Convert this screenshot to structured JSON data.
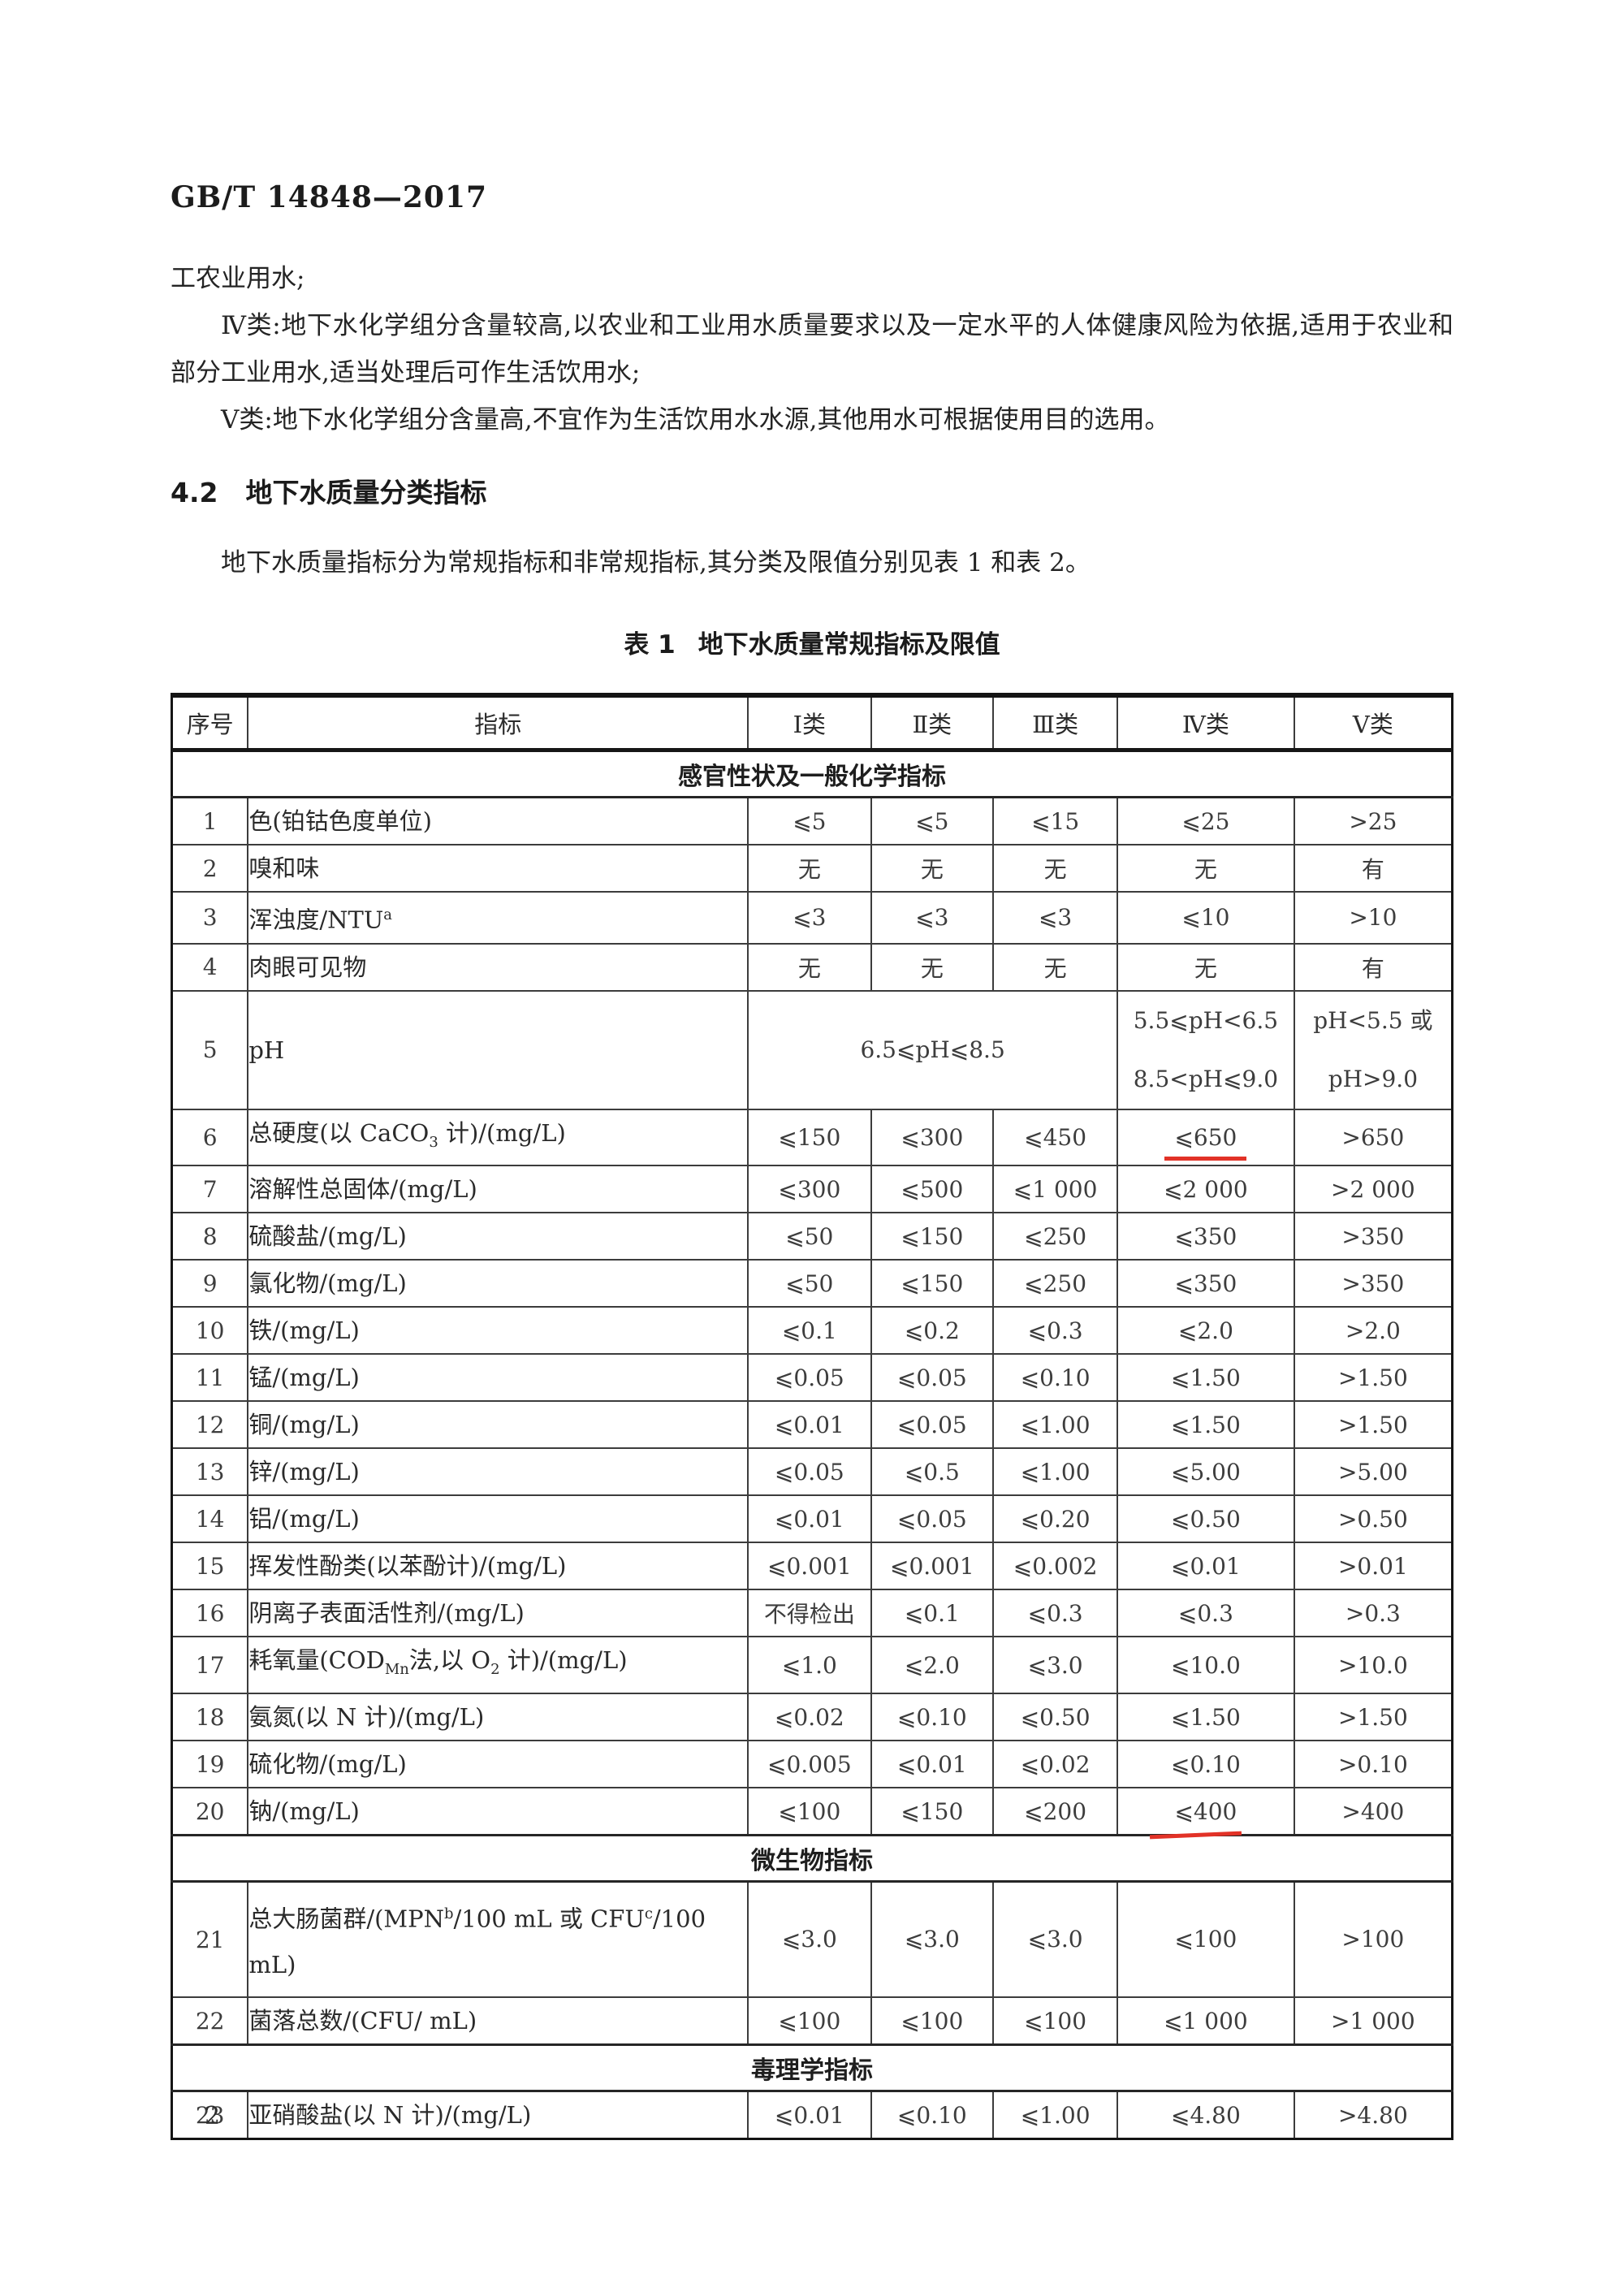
{
  "page": {
    "doc_code": "GB/T 14848—2017",
    "page_number": "2"
  },
  "paragraphs": {
    "p0": "工农业用水;",
    "p1": "Ⅳ类:地下水化学组分含量较高,以农业和工业用水质量要求以及一定水平的人体健康风险为依据,适用于农业和部分工业用水,适当处理后可作生活饮用水;",
    "p2": "Ⅴ类:地下水化学组分含量高,不宜作为生活饮用水水源,其他用水可根据使用目的选用。"
  },
  "section": {
    "number": "4.2",
    "title": "地下水质量分类指标",
    "body": "地下水质量指标分为常规指标和非常规指标,其分类及限值分别见表 1 和表 2。"
  },
  "table": {
    "caption_label": "表 1",
    "caption_title": "地下水质量常规指标及限值",
    "mark_red": "#e23227",
    "headers": [
      "序号",
      "指标",
      "Ⅰ类",
      "Ⅱ类",
      "Ⅲ类",
      "Ⅳ类",
      "Ⅴ类"
    ],
    "rows": [
      {
        "type": "section",
        "label": "感官性状及一般化学指标"
      },
      {
        "type": "row",
        "no": "1",
        "label": "色(铂钴色度单位)",
        "cells": [
          {
            "t": "⩽5"
          },
          {
            "t": "⩽5"
          },
          {
            "t": "⩽15"
          },
          {
            "t": "⩽25"
          },
          {
            "t": ">25"
          }
        ]
      },
      {
        "type": "row",
        "no": "2",
        "label": "嗅和味",
        "cells": [
          {
            "t": "无"
          },
          {
            "t": "无"
          },
          {
            "t": "无"
          },
          {
            "t": "无"
          },
          {
            "t": "有"
          }
        ]
      },
      {
        "type": "row",
        "no": "3",
        "label": "浑浊度/NTU<sup>a</sup>",
        "cells": [
          {
            "t": "⩽3"
          },
          {
            "t": "⩽3"
          },
          {
            "t": "⩽3"
          },
          {
            "t": "⩽10"
          },
          {
            "t": ">10"
          }
        ]
      },
      {
        "type": "row",
        "no": "4",
        "label": "肉眼可见物",
        "cells": [
          {
            "t": "无"
          },
          {
            "t": "无"
          },
          {
            "t": "无"
          },
          {
            "t": "无"
          },
          {
            "t": "有"
          }
        ]
      },
      {
        "type": "row",
        "no": "5",
        "tall": true,
        "label": "pH",
        "cells": [
          {
            "t": "6.5⩽pH⩽8.5",
            "cs": 3
          },
          {
            "t": "5.5⩽pH<6.5\n8.5<pH⩽9.0"
          },
          {
            "t": "pH<5.5 或\npH>9.0"
          }
        ]
      },
      {
        "type": "row",
        "no": "6",
        "label": "总硬度(以 CaCO<sub>3</sub> 计)/(mg/L)",
        "cells": [
          {
            "t": "⩽150"
          },
          {
            "t": "⩽300"
          },
          {
            "t": "⩽450"
          },
          {
            "t": "⩽650",
            "mark": true
          },
          {
            "t": ">650"
          }
        ]
      },
      {
        "type": "row",
        "no": "7",
        "label": "溶解性总固体/(mg/L)",
        "cells": [
          {
            "t": "⩽300"
          },
          {
            "t": "⩽500"
          },
          {
            "t": "⩽1 000"
          },
          {
            "t": "⩽2 000"
          },
          {
            "t": ">2 000"
          }
        ]
      },
      {
        "type": "row",
        "no": "8",
        "label": "硫酸盐/(mg/L)",
        "cells": [
          {
            "t": "⩽50"
          },
          {
            "t": "⩽150"
          },
          {
            "t": "⩽250"
          },
          {
            "t": "⩽350"
          },
          {
            "t": ">350"
          }
        ]
      },
      {
        "type": "row",
        "no": "9",
        "label": "氯化物/(mg/L)",
        "cells": [
          {
            "t": "⩽50"
          },
          {
            "t": "⩽150"
          },
          {
            "t": "⩽250"
          },
          {
            "t": "⩽350"
          },
          {
            "t": ">350"
          }
        ]
      },
      {
        "type": "row",
        "no": "10",
        "label": "铁/(mg/L)",
        "cells": [
          {
            "t": "⩽0.1"
          },
          {
            "t": "⩽0.2"
          },
          {
            "t": "⩽0.3"
          },
          {
            "t": "⩽2.0"
          },
          {
            "t": ">2.0"
          }
        ]
      },
      {
        "type": "row",
        "no": "11",
        "label": "锰/(mg/L)",
        "cells": [
          {
            "t": "⩽0.05"
          },
          {
            "t": "⩽0.05"
          },
          {
            "t": "⩽0.10"
          },
          {
            "t": "⩽1.50"
          },
          {
            "t": ">1.50"
          }
        ]
      },
      {
        "type": "row",
        "no": "12",
        "label": "铜/(mg/L)",
        "cells": [
          {
            "t": "⩽0.01"
          },
          {
            "t": "⩽0.05"
          },
          {
            "t": "⩽1.00"
          },
          {
            "t": "⩽1.50"
          },
          {
            "t": ">1.50"
          }
        ]
      },
      {
        "type": "row",
        "no": "13",
        "label": "锌/(mg/L)",
        "cells": [
          {
            "t": "⩽0.05"
          },
          {
            "t": "⩽0.5"
          },
          {
            "t": "⩽1.00"
          },
          {
            "t": "⩽5.00"
          },
          {
            "t": ">5.00"
          }
        ]
      },
      {
        "type": "row",
        "no": "14",
        "label": "铝/(mg/L)",
        "cells": [
          {
            "t": "⩽0.01"
          },
          {
            "t": "⩽0.05"
          },
          {
            "t": "⩽0.20"
          },
          {
            "t": "⩽0.50"
          },
          {
            "t": ">0.50"
          }
        ]
      },
      {
        "type": "row",
        "no": "15",
        "label": "挥发性酚类(以苯酚计)/(mg/L)",
        "cells": [
          {
            "t": "⩽0.001"
          },
          {
            "t": "⩽0.001"
          },
          {
            "t": "⩽0.002"
          },
          {
            "t": "⩽0.01"
          },
          {
            "t": ">0.01"
          }
        ]
      },
      {
        "type": "row",
        "no": "16",
        "label": "阴离子表面活性剂/(mg/L)",
        "cells": [
          {
            "t": "不得检出"
          },
          {
            "t": "⩽0.1"
          },
          {
            "t": "⩽0.3"
          },
          {
            "t": "⩽0.3"
          },
          {
            "t": ">0.3"
          }
        ]
      },
      {
        "type": "row",
        "no": "17",
        "label": "耗氧量(COD<sub>Mn</sub>法,以 O<sub>2</sub> 计)/(mg/L)",
        "cells": [
          {
            "t": "⩽1.0"
          },
          {
            "t": "⩽2.0"
          },
          {
            "t": "⩽3.0"
          },
          {
            "t": "⩽10.0"
          },
          {
            "t": ">10.0"
          }
        ]
      },
      {
        "type": "row",
        "no": "18",
        "label": "氨氮(以 N 计)/(mg/L)",
        "cells": [
          {
            "t": "⩽0.02"
          },
          {
            "t": "⩽0.10"
          },
          {
            "t": "⩽0.50"
          },
          {
            "t": "⩽1.50"
          },
          {
            "t": ">1.50"
          }
        ]
      },
      {
        "type": "row",
        "no": "19",
        "label": "硫化物/(mg/L)",
        "cells": [
          {
            "t": "⩽0.005"
          },
          {
            "t": "⩽0.01"
          },
          {
            "t": "⩽0.02"
          },
          {
            "t": "⩽0.10"
          },
          {
            "t": ">0.10"
          }
        ]
      },
      {
        "type": "row",
        "no": "20",
        "label": "钠/(mg/L)",
        "cells": [
          {
            "t": "⩽100"
          },
          {
            "t": "⩽150"
          },
          {
            "t": "⩽200"
          },
          {
            "t": "⩽400",
            "mark": true,
            "tilt": true
          },
          {
            "t": ">400"
          }
        ]
      },
      {
        "type": "section",
        "label": "微生物指标"
      },
      {
        "type": "row",
        "no": "21",
        "tall": true,
        "label": "总大肠菌群/(MPN<sup>b</sup>/100 mL 或 CFU<sup>c</sup>/100 mL)",
        "cells": [
          {
            "t": "⩽3.0"
          },
          {
            "t": "⩽3.0"
          },
          {
            "t": "⩽3.0"
          },
          {
            "t": "⩽100"
          },
          {
            "t": ">100"
          }
        ]
      },
      {
        "type": "row",
        "no": "22",
        "label": "菌落总数/(CFU/ mL)",
        "cells": [
          {
            "t": "⩽100"
          },
          {
            "t": "⩽100"
          },
          {
            "t": "⩽100"
          },
          {
            "t": "⩽1 000"
          },
          {
            "t": ">1 000"
          }
        ]
      },
      {
        "type": "section",
        "label": "毒理学指标"
      },
      {
        "type": "row",
        "no": "23",
        "label": "亚硝酸盐(以 N 计)/(mg/L)",
        "cells": [
          {
            "t": "⩽0.01"
          },
          {
            "t": "⩽0.10"
          },
          {
            "t": "⩽1.00"
          },
          {
            "t": "⩽4.80"
          },
          {
            "t": ">4.80"
          }
        ]
      }
    ]
  }
}
